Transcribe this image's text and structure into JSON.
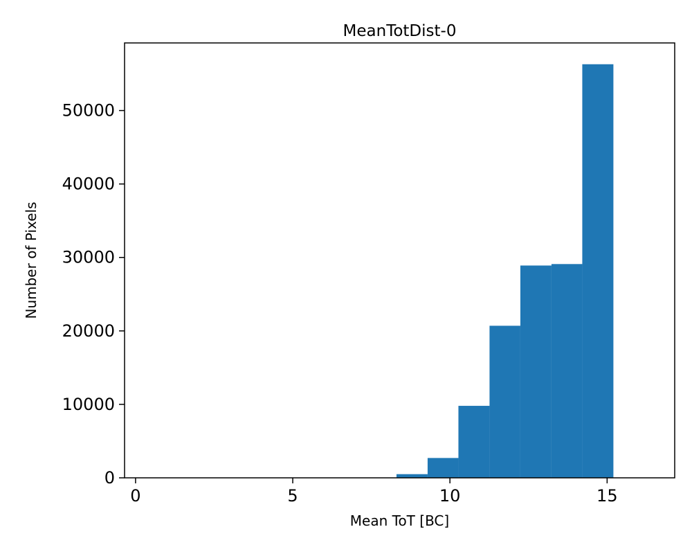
{
  "chart_data": {
    "type": "bar",
    "title": "MeanTotDist-0",
    "xlabel": "Mean ToT [BC]",
    "ylabel": "Number of Pixels",
    "bin_edges": [
      8.3,
      9.29,
      10.27,
      11.26,
      12.24,
      13.23,
      14.21,
      15.2
    ],
    "counts": [
      500,
      2700,
      9800,
      20700,
      28900,
      29100,
      56300
    ],
    "x_ticks": [
      0,
      5,
      10,
      15
    ],
    "y_ticks": [
      0,
      10000,
      20000,
      30000,
      40000,
      50000
    ],
    "xlim": [
      -0.35,
      17.15
    ],
    "ylim": [
      0,
      59200
    ],
    "bar_color": "#1f77b4",
    "axis_color": "#000000",
    "background": "#ffffff",
    "grid": false,
    "legend": "none"
  }
}
